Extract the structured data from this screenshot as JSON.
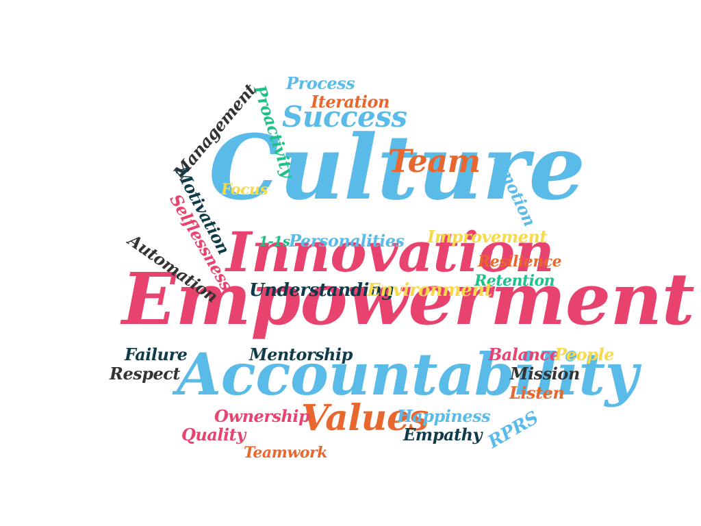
{
  "palette": {
    "blue": "#5bbbe8",
    "pink": "#e8436f",
    "orange": "#e8672e",
    "yellow": "#f7d94c",
    "navy": "#0f3a4a",
    "teal": "#1fc08a",
    "charcoal": "#333333"
  },
  "words": [
    {
      "id": "culture",
      "text": "Culture",
      "color": "#5bbbe8"
    },
    {
      "id": "innovation",
      "text": "Innovation",
      "color": "#e8436f"
    },
    {
      "id": "empowerment",
      "text": "Empowerment",
      "color": "#e8436f"
    },
    {
      "id": "accountability",
      "text": "Accountability",
      "color": "#5bbbe8"
    },
    {
      "id": "values",
      "text": "Values",
      "color": "#e8672e"
    },
    {
      "id": "team",
      "text": "Team",
      "color": "#e8672e"
    },
    {
      "id": "success",
      "text": "Success",
      "color": "#5bbbe8"
    },
    {
      "id": "process",
      "text": "Process",
      "color": "#5bbbe8"
    },
    {
      "id": "iteration",
      "text": "Iteration",
      "color": "#e8672e"
    },
    {
      "id": "proactivity",
      "text": "Proactivity",
      "color": "#1fc08a"
    },
    {
      "id": "management",
      "text": "Management",
      "color": "#333333"
    },
    {
      "id": "focus",
      "text": "Focus",
      "color": "#f7d94c"
    },
    {
      "id": "emotion",
      "text": "Emotion",
      "color": "#5bbbe8"
    },
    {
      "id": "motivation",
      "text": "Motivation",
      "color": "#0f3a4a"
    },
    {
      "id": "selflessness",
      "text": "Selflessness",
      "color": "#e8436f"
    },
    {
      "id": "one-on-ones",
      "text": "1-1s",
      "color": "#1fc08a"
    },
    {
      "id": "personalities",
      "text": "Personalities",
      "color": "#5bbbe8"
    },
    {
      "id": "improvement",
      "text": "Improvement",
      "color": "#f7d94c"
    },
    {
      "id": "automation",
      "text": "Automation",
      "color": "#333333"
    },
    {
      "id": "resilience",
      "text": "Resilience",
      "color": "#e8672e"
    },
    {
      "id": "retention",
      "text": "Retention",
      "color": "#1fc08a"
    },
    {
      "id": "understanding",
      "text": "Understanding",
      "color": "#0f3a4a"
    },
    {
      "id": "environment",
      "text": "Environment",
      "color": "#f7d94c"
    },
    {
      "id": "failure",
      "text": "Failure",
      "color": "#0f3a4a"
    },
    {
      "id": "mentorship",
      "text": "Mentorship",
      "color": "#0f3a4a"
    },
    {
      "id": "balance",
      "text": "Balance",
      "color": "#e8436f"
    },
    {
      "id": "people",
      "text": "People",
      "color": "#f7d94c"
    },
    {
      "id": "respect",
      "text": "Respect",
      "color": "#333333"
    },
    {
      "id": "mission",
      "text": "Mission",
      "color": "#333333"
    },
    {
      "id": "listen",
      "text": "Listen",
      "color": "#e8672e"
    },
    {
      "id": "ownership",
      "text": "Ownership",
      "color": "#e8436f"
    },
    {
      "id": "happiness",
      "text": "Happiness",
      "color": "#5bbbe8"
    },
    {
      "id": "rprs",
      "text": "RPRS",
      "color": "#5bbbe8"
    },
    {
      "id": "quality",
      "text": "Quality",
      "color": "#e8436f"
    },
    {
      "id": "empathy",
      "text": "Empathy",
      "color": "#0f3a4a"
    },
    {
      "id": "teamwork",
      "text": "Teamwork",
      "color": "#e8672e"
    }
  ]
}
